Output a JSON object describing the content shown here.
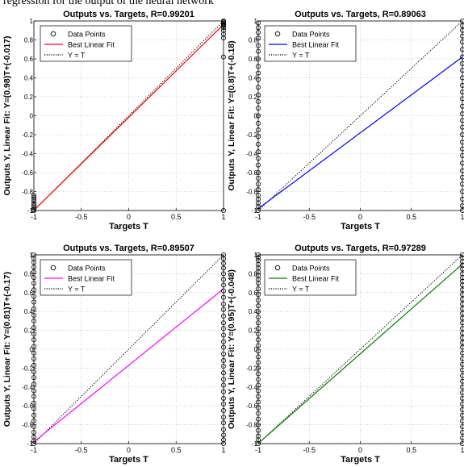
{
  "caption_fragment": "regression for the output of the neural network",
  "chart_data": [
    {
      "type": "scatter",
      "title": "Outputs vs. Targets, R=0.99201",
      "xlabel": "Targets T",
      "ylabel": "Outputs Y,  Linear Fit: Y=(0.98)T+(-0.017)",
      "xlim": [
        -1,
        1
      ],
      "ylim": [
        -1,
        1
      ],
      "x_ticks": [
        "-1",
        "-0.5",
        "0",
        "0.5",
        "1"
      ],
      "y_ticks": [
        "-1",
        "-0.8",
        "-0.6",
        "-0.4",
        "-0.2",
        "0",
        "0.2",
        "0.4",
        "0.6",
        "0.8",
        "1"
      ],
      "grid": true,
      "legend_position": "top-left",
      "fit": {
        "slope": 0.98,
        "intercept": -0.017,
        "color": "#ff0000"
      },
      "series": [
        {
          "name": "Data Points",
          "style": "circle"
        },
        {
          "name": "Best Linear Fit",
          "style": "line",
          "color": "#ff0000"
        },
        {
          "name": "Y = T",
          "style": "dotted",
          "color": "#000000"
        }
      ],
      "points": {
        "at_x_minus1": [
          -1,
          -0.99,
          -0.97,
          -0.95,
          -0.93,
          -0.9,
          -0.88,
          -0.86,
          -0.84
        ],
        "at_x_plus1": [
          1,
          0.99,
          0.98,
          0.97,
          0.96,
          0.95,
          0.93,
          0.9,
          0.86,
          0.82,
          0.62,
          -1
        ]
      }
    },
    {
      "type": "scatter",
      "title": "Outputs vs. Targets, R=0.89063",
      "xlabel": "Targets T",
      "ylabel": "Outputs Y,  Linear Fit: Y=(0.8)T+(-0.18)",
      "xlim": [
        -1,
        1
      ],
      "ylim": [
        -1,
        1
      ],
      "x_ticks": [
        "-1",
        "-0.5",
        "0",
        "0.5",
        "1"
      ],
      "y_ticks": [
        "-1",
        "-0.8",
        "-0.6",
        "-0.4",
        "-0.2",
        "0",
        "0.2",
        "0.4",
        "0.6",
        "0.8",
        "1"
      ],
      "grid": true,
      "legend_position": "top-left",
      "fit": {
        "slope": 0.8,
        "intercept": -0.18,
        "color": "#0000ff"
      },
      "series": [
        {
          "name": "Data Points",
          "style": "circle"
        },
        {
          "name": "Best Linear Fit",
          "style": "line",
          "color": "#0000ff"
        },
        {
          "name": "Y = T",
          "style": "dotted",
          "color": "#000000"
        }
      ],
      "points": {
        "at_x_minus1": [
          0.98,
          0.93,
          0.88,
          0.82,
          0.74,
          0.68,
          0.6,
          0.52,
          0.45,
          0.38,
          0.3,
          0.22,
          0.15,
          0.08,
          0.0,
          -0.08,
          -0.15,
          -0.22,
          -0.3,
          -0.38,
          -0.45,
          -0.52,
          -0.6,
          -0.66,
          -0.72,
          -0.78,
          -0.84,
          -0.88,
          -0.92,
          -0.96,
          -1
        ],
        "at_x_plus1": [
          1,
          0.95,
          0.9,
          0.84,
          0.78,
          0.7,
          0.62,
          0.55,
          0.48,
          0.4,
          0.32,
          0.25,
          0.18,
          0.1,
          0.02,
          -0.05,
          -0.12,
          -0.2,
          -0.28,
          -0.35,
          -0.42,
          -0.5,
          -0.58,
          -0.65,
          -0.72,
          -0.8,
          -0.88,
          -0.95,
          -1
        ]
      }
    },
    {
      "type": "scatter",
      "title": "Outputs vs. Targets, R=0.89507",
      "xlabel": "Targets T",
      "ylabel": "Outputs Y,  Linear Fit: Y=(0.81)T+(-0.17)",
      "xlim": [
        -1,
        1
      ],
      "ylim": [
        -1,
        1
      ],
      "x_ticks": [
        "-1",
        "-0.5",
        "0",
        "0.5",
        "1"
      ],
      "y_ticks": [
        "-1",
        "-0.8",
        "-0.6",
        "-0.4",
        "-0.2",
        "0",
        "0.2",
        "0.4",
        "0.6",
        "0.8",
        "1"
      ],
      "grid": true,
      "legend_position": "top-left",
      "fit": {
        "slope": 0.81,
        "intercept": -0.17,
        "color": "#ff00ff"
      },
      "series": [
        {
          "name": "Data Points",
          "style": "circle"
        },
        {
          "name": "Best Linear Fit",
          "style": "line",
          "color": "#ff00ff"
        },
        {
          "name": "Y = T",
          "style": "dotted",
          "color": "#000000"
        }
      ],
      "points": {
        "at_x_minus1": [
          1,
          0.96,
          0.92,
          0.87,
          0.82,
          0.76,
          0.7,
          0.63,
          0.56,
          0.5,
          0.43,
          0.36,
          0.3,
          0.23,
          0.16,
          0.1,
          0.03,
          -0.04,
          -0.1,
          -0.17,
          -0.24,
          -0.3,
          -0.37,
          -0.44,
          -0.5,
          -0.57,
          -0.63,
          -0.7,
          -0.76,
          -0.82,
          -0.88,
          -0.93,
          -0.97,
          -1
        ],
        "at_x_plus1": [
          1,
          0.96,
          0.91,
          0.86,
          0.8,
          0.74,
          0.68,
          0.62,
          0.55,
          0.48,
          0.42,
          0.35,
          0.28,
          0.22,
          0.15,
          0.08,
          0.02,
          -0.05,
          -0.12,
          -0.18,
          -0.25,
          -0.32,
          -0.38,
          -0.45,
          -0.52,
          -0.58,
          -0.65,
          -0.72,
          -0.78,
          -0.85,
          -0.91,
          -0.96,
          -1
        ]
      }
    },
    {
      "type": "scatter",
      "title": "Outputs vs. Targets, R=0.97289",
      "xlabel": "Targets T",
      "ylabel": "Outputs Y,  Linear Fit: Y=(0.95)T+(-0.048)",
      "xlim": [
        -1,
        1
      ],
      "ylim": [
        -1,
        1
      ],
      "x_ticks": [
        "-1",
        "-0.5",
        "0",
        "0.5",
        "1"
      ],
      "y_ticks": [
        "-1",
        "-0.8",
        "-0.6",
        "-0.4",
        "-0.2",
        "0",
        "0.2",
        "0.4",
        "0.6",
        "0.8",
        "1"
      ],
      "grid": true,
      "legend_position": "top-left",
      "fit": {
        "slope": 0.95,
        "intercept": -0.048,
        "color": "#008000"
      },
      "series": [
        {
          "name": "Data Points",
          "style": "circle"
        },
        {
          "name": "Best Linear Fit",
          "style": "line",
          "color": "#008000"
        },
        {
          "name": "Y = T",
          "style": "dotted",
          "color": "#000000"
        }
      ],
      "points": {
        "at_x_minus1": [
          1,
          0.97,
          0.94,
          0.9,
          0.86,
          0.82,
          0.78,
          0.74,
          0.7,
          0.64,
          0.58,
          0.52,
          0.46,
          0.4,
          0.34,
          0.28,
          0.22,
          0.16,
          0.1,
          0.04,
          -0.02,
          -0.08,
          -0.14,
          -0.2,
          -0.26,
          -0.32,
          -0.38,
          -0.44,
          -0.5,
          -0.56,
          -0.62,
          -0.68,
          -0.74,
          -0.8,
          -0.86,
          -0.92,
          -0.96,
          -1
        ],
        "at_x_plus1": [
          1,
          0.97,
          0.93,
          0.89,
          0.85,
          0.8,
          0.76,
          0.72,
          0.68,
          0.63,
          0.58,
          0.53,
          0.48,
          0.43,
          0.38,
          0.33,
          0.28,
          0.22,
          0.17,
          0.12,
          0.07,
          0.02,
          -0.04,
          -0.1,
          -0.16,
          -0.22,
          -0.28,
          -0.34,
          -0.4,
          -0.46,
          -0.52,
          -0.58,
          -0.64,
          -0.7,
          -0.76,
          -0.82,
          -0.88,
          -0.94,
          -1
        ]
      }
    }
  ]
}
